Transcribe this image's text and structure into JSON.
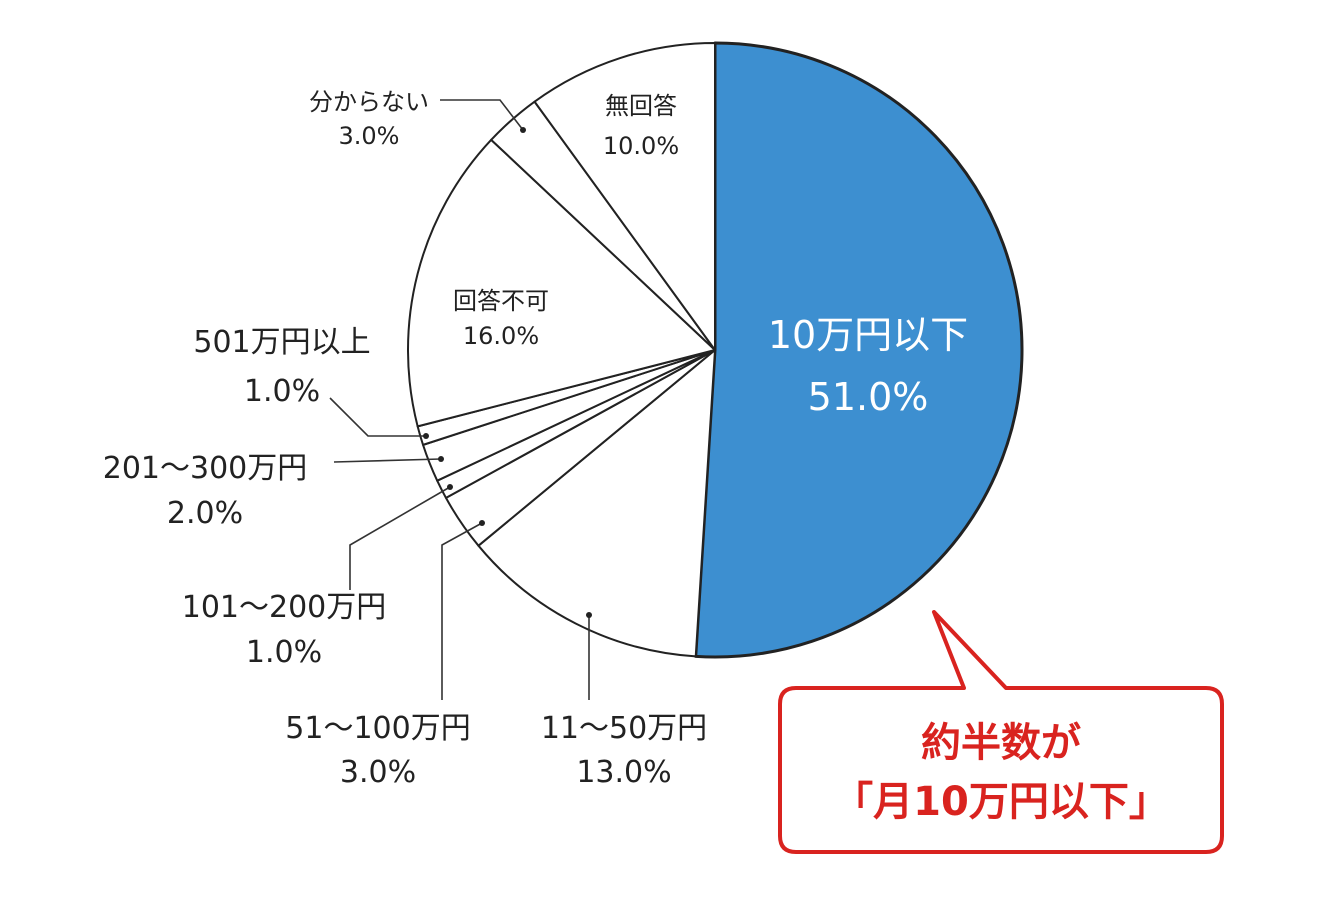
{
  "chart_data": {
    "type": "pie",
    "start_angle_deg": 90,
    "direction": "clockwise",
    "slices": [
      {
        "label": "10万円以下",
        "value": 51.0,
        "value_label": "51.0%",
        "color": "#3d8fd0"
      },
      {
        "label": "11〜50万円",
        "value": 13.0,
        "value_label": "13.0%",
        "color": "#ffffff"
      },
      {
        "label": "51〜100万円",
        "value": 3.0,
        "value_label": "3.0%",
        "color": "#ffffff"
      },
      {
        "label": "101〜200万円",
        "value": 1.0,
        "value_label": "1.0%",
        "color": "#ffffff"
      },
      {
        "label": "201〜300万円",
        "value": 2.0,
        "value_label": "2.0%",
        "color": "#ffffff"
      },
      {
        "label": "501万円以上",
        "value": 1.0,
        "value_label": "1.0%",
        "color": "#ffffff"
      },
      {
        "label": "回答不可",
        "value": 16.0,
        "value_label": "16.0%",
        "color": "#ffffff"
      },
      {
        "label": "分からない",
        "value": 3.0,
        "value_label": "3.0%",
        "color": "#ffffff"
      },
      {
        "label": "無回答",
        "value": 10.0,
        "value_label": "10.0%",
        "color": "#ffffff"
      }
    ]
  },
  "callout": {
    "line1": "約半数が",
    "line2": "「月10万円以下」",
    "color": "#d9231f"
  }
}
